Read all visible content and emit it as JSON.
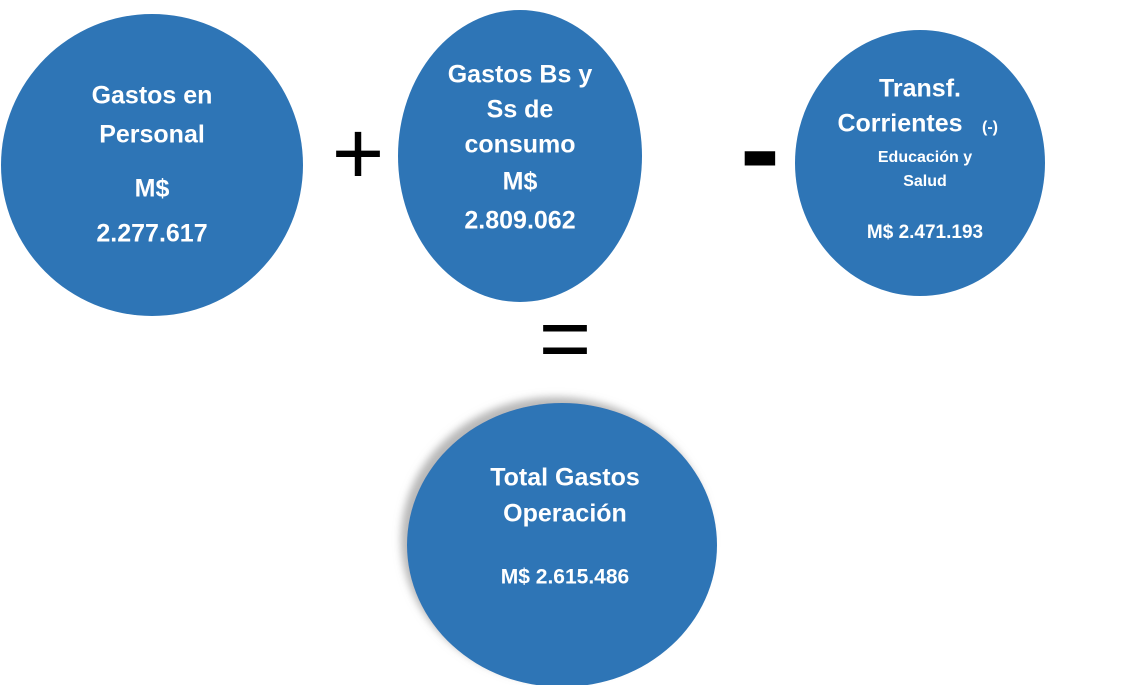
{
  "nodes": [
    {
      "lines": [
        "Gastos en",
        "Personal",
        "M$",
        "2.277.617"
      ]
    },
    {
      "lines": [
        "Gastos Bs y",
        "Ss de",
        "consumo",
        "M$",
        "2.809.062"
      ]
    },
    {
      "lines": [
        "Transf.",
        "Corrientes",
        "Educación y",
        "Salud",
        "M$ 2.471.193"
      ],
      "suffix": "(-)"
    },
    {
      "lines": [
        "Total Gastos",
        "Operación",
        "M$ 2.615.486"
      ]
    }
  ],
  "operators": [
    "+",
    "-",
    "="
  ]
}
